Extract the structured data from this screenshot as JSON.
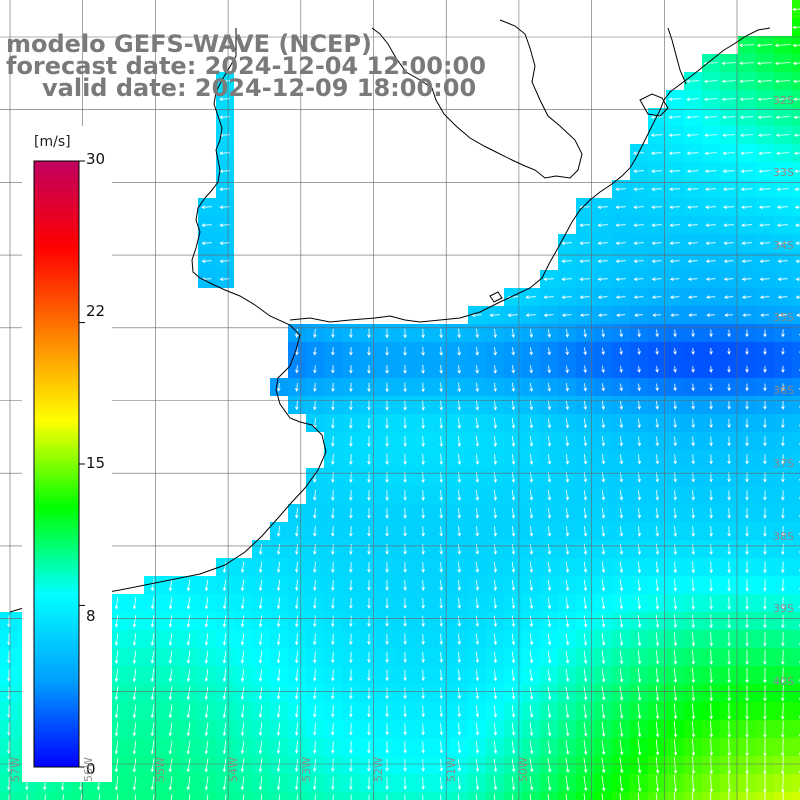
{
  "title": {
    "model": "modelo GEFS-WAVE (NCEP)",
    "forecast": "forecast date: 2024-12-04 12:00:00",
    "valid": "valid date: 2024-12-09 18:00:00"
  },
  "colorbar": {
    "unit": "[m/s]",
    "ticks": [
      "30",
      "22",
      "15",
      "8",
      "0"
    ],
    "tick_values": [
      30,
      22,
      15,
      8,
      0
    ],
    "min": 0,
    "max": 30,
    "colors": [
      "#0000ff",
      "#00a0ff",
      "#00ffff",
      "#00ff00",
      "#ffff00",
      "#ff8000",
      "#ff0000",
      "#c00060"
    ]
  },
  "lat_labels": [
    "32S",
    "33S",
    "34S",
    "35S",
    "36S",
    "37S",
    "38S",
    "39S",
    "40S"
  ],
  "lon_labels": [
    "57W",
    "56W",
    "55W",
    "54W",
    "53W",
    "52W",
    "51W",
    "50W"
  ],
  "colors": {
    "land": "#ffffff",
    "grid": "#666666",
    "coast": "#000000",
    "arrow": "#ffffff",
    "title": "#7a7a7a"
  },
  "field": {
    "variable": "wind speed",
    "units": "m/s",
    "typical_range": [
      3,
      13
    ]
  }
}
